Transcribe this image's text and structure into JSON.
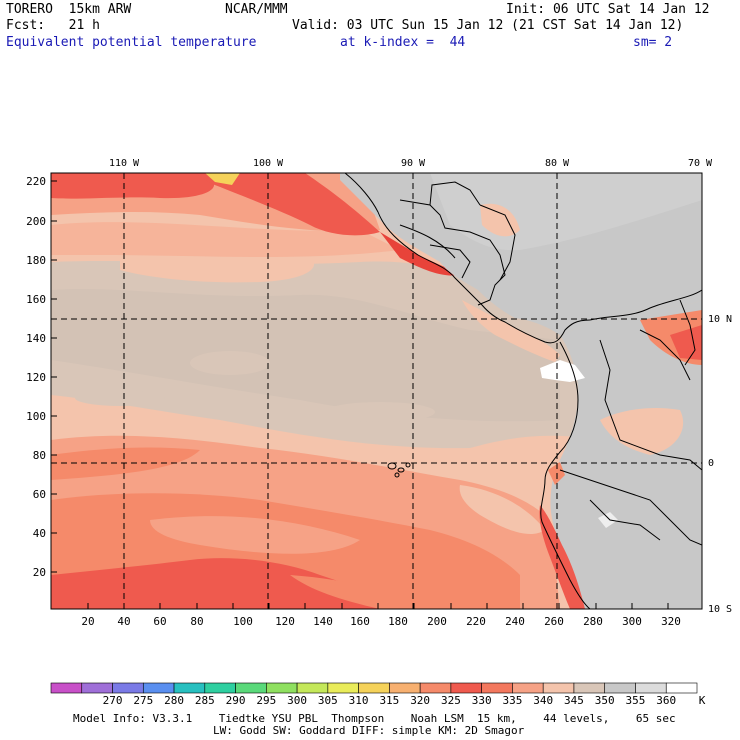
{
  "header": {
    "model": "TORERO  15km ARW",
    "org": "NCAR/MMM",
    "init": "Init: 06 UTC Sat 14 Jan 12",
    "fcst": "Fcst:   21 h",
    "valid": "Valid: 03 UTC Sun 15 Jan 12 (21 CST Sat 14 Jan 12)",
    "field": "Equivalent potential temperature",
    "level": "at k-index =  44",
    "smooth": "sm= 2"
  },
  "map": {
    "lon_labels": [
      "110 W",
      "100 W",
      "90 W",
      "80 W",
      "70 W"
    ],
    "lat_labels": [
      "10 N",
      "0",
      "10 S"
    ],
    "y_ticks": [
      "220",
      "200",
      "180",
      "160",
      "140",
      "120",
      "100",
      "80",
      "60",
      "40",
      "20"
    ],
    "x_ticks": [
      "20",
      "40",
      "60",
      "80",
      "100",
      "120",
      "140",
      "160",
      "180",
      "200",
      "220",
      "240",
      "260",
      "280",
      "300",
      "320"
    ]
  },
  "colorbar": {
    "labels": [
      "270",
      "275",
      "280",
      "285",
      "290",
      "295",
      "300",
      "305",
      "310",
      "315",
      "320",
      "325",
      "330",
      "335",
      "340",
      "345",
      "350",
      "355",
      "360"
    ],
    "unit": "K",
    "colors": [
      "#c850c8",
      "#9f6fd8",
      "#7a7ae6",
      "#5a8ff0",
      "#28c0c0",
      "#2ecfa0",
      "#5ad97a",
      "#8fe060",
      "#c4e85a",
      "#e9ec5a",
      "#f5d25a",
      "#f7b070",
      "#f58a6a",
      "#ef5a4e",
      "#f3785e",
      "#f6a286",
      "#f4c4ac",
      "#d9c6b8",
      "#c8c8c8",
      "#dcdcdc",
      "#ffffff"
    ]
  },
  "footer": {
    "line1": "Model Info: V3.3.1    Tiedtke YSU PBL  Thompson    Noah LSM  15 km,    44 levels,    65 sec",
    "line2": "LW: Godd SW: Goddard DIFF: simple KM: 2D Smagor"
  }
}
